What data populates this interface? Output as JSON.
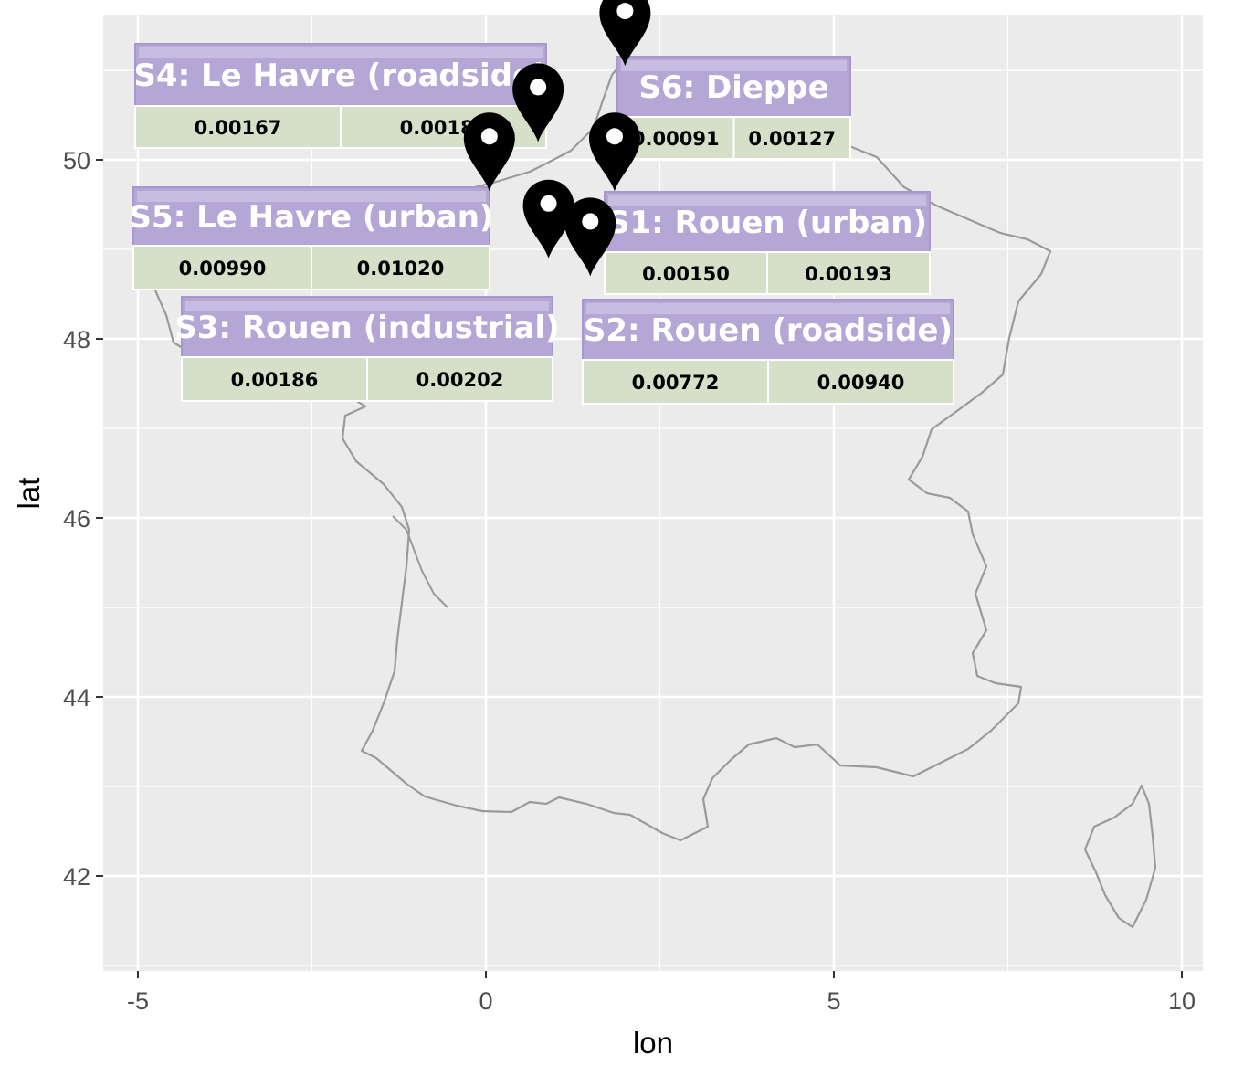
{
  "chart": {
    "xlabel": "lon",
    "ylabel": "lat",
    "xlim": [
      -5,
      10
    ],
    "ylim": [
      41,
      51.6
    ],
    "x_ticks": [
      -5,
      0,
      5,
      10
    ],
    "y_ticks": [
      42,
      44,
      46,
      48,
      50
    ],
    "background": "#ebebeb",
    "grid_color": "#ffffff",
    "outline_color": "#9a9a9a",
    "marker_color": "#000000",
    "title_bar_color": "#b4a7d6",
    "value_cell_color": "#d6e0c8"
  },
  "markers": [
    {
      "id": "S1",
      "lon": 1.85,
      "lat": 49.65
    },
    {
      "id": "S2",
      "lon": 1.5,
      "lat": 48.7
    },
    {
      "id": "S3",
      "lon": 0.9,
      "lat": 48.9
    },
    {
      "id": "S4",
      "lon": 0.75,
      "lat": 50.2
    },
    {
      "id": "S5",
      "lon": 0.05,
      "lat": 49.65
    },
    {
      "id": "S6",
      "lon": 2.0,
      "lat": 51.05
    }
  ],
  "labels": [
    {
      "id": "S4",
      "title": "S4: Le Havre (roadside)",
      "v1": "0.00167",
      "v2": "0.00182"
    },
    {
      "id": "S6",
      "title": "S6: Dieppe",
      "v1": "0.00091",
      "v2": "0.00127"
    },
    {
      "id": "S5",
      "title": "S5: Le Havre (urban)",
      "v1": "0.00990",
      "v2": "0.01020"
    },
    {
      "id": "S1",
      "title": "S1: Rouen (urban)",
      "v1": "0.00150",
      "v2": "0.00193"
    },
    {
      "id": "S3",
      "title": "S3: Rouen (industrial)",
      "v1": "0.00186",
      "v2": "0.00202"
    },
    {
      "id": "S2",
      "title": "S2:  Rouen (roadside)",
      "v1": "0.00772",
      "v2": "0.00940"
    }
  ]
}
